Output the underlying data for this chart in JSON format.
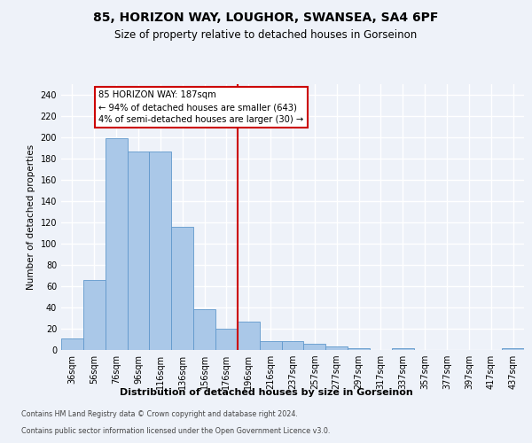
{
  "title1": "85, HORIZON WAY, LOUGHOR, SWANSEA, SA4 6PF",
  "title2": "Size of property relative to detached houses in Gorseinon",
  "xlabel": "Distribution of detached houses by size in Gorseinon",
  "ylabel": "Number of detached properties",
  "bin_labels": [
    "36sqm",
    "56sqm",
    "76sqm",
    "96sqm",
    "116sqm",
    "136sqm",
    "156sqm",
    "176sqm",
    "196sqm",
    "216sqm",
    "237sqm",
    "257sqm",
    "277sqm",
    "297sqm",
    "317sqm",
    "337sqm",
    "357sqm",
    "377sqm",
    "397sqm",
    "417sqm",
    "437sqm"
  ],
  "bar_values": [
    11,
    66,
    199,
    187,
    187,
    116,
    38,
    20,
    27,
    8,
    8,
    6,
    3,
    2,
    0,
    2,
    0,
    0,
    0,
    0,
    2
  ],
  "bar_color": "#aac8e8",
  "bar_edge_color": "#6098cc",
  "vline_color": "#cc0000",
  "vline_pos": 7.5,
  "annotation_text": "85 HORIZON WAY: 187sqm\n← 94% of detached houses are smaller (643)\n4% of semi-detached houses are larger (30) →",
  "annotation_box_color": "#ffffff",
  "annotation_box_edge": "#cc0000",
  "ylim": [
    0,
    250
  ],
  "yticks": [
    0,
    20,
    40,
    60,
    80,
    100,
    120,
    140,
    160,
    180,
    200,
    220,
    240
  ],
  "footer1": "Contains HM Land Registry data © Crown copyright and database right 2024.",
  "footer2": "Contains public sector information licensed under the Open Government Licence v3.0.",
  "bg_color": "#eef2f9",
  "grid_color": "#ffffff"
}
